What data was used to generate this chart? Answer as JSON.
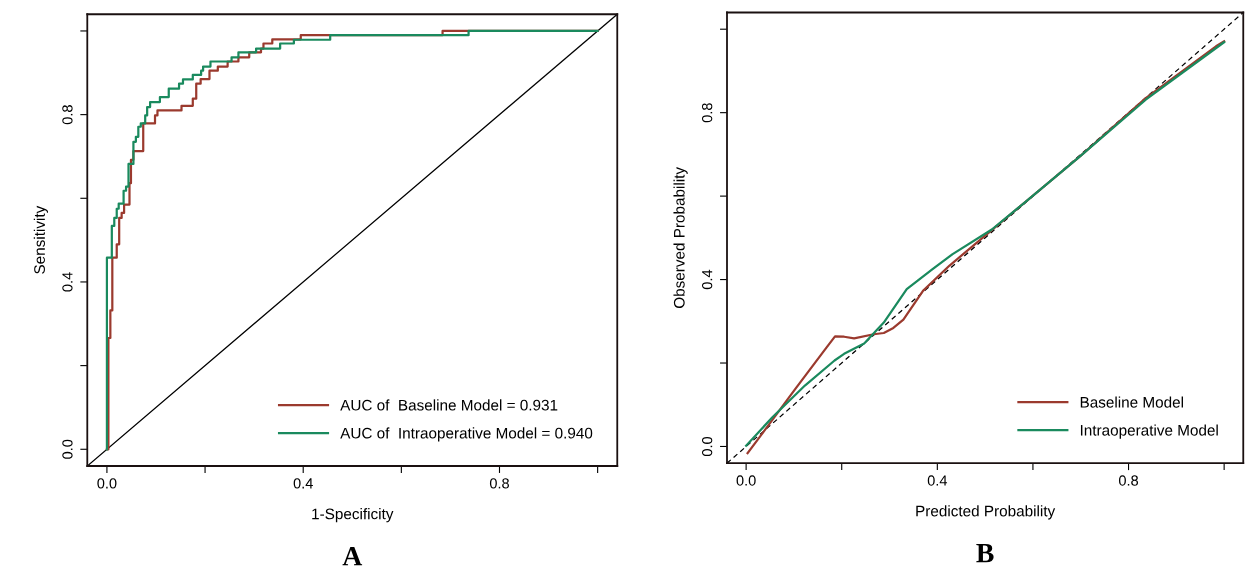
{
  "chart_data": [
    {
      "type": "step",
      "xlabel": "1-Specificity",
      "ylabel": "Sensitivity",
      "annotations": [
        "A"
      ],
      "xlim": [
        -0.04,
        1.04
      ],
      "ylim": [
        -0.04,
        1.04
      ],
      "xticks": [
        {
          "value": 0,
          "label": "0.0"
        },
        {
          "value": 0.2,
          "label": null
        },
        {
          "value": 0.4,
          "label": "0.4"
        },
        {
          "value": 0.6,
          "label": null
        },
        {
          "value": 0.8,
          "label": "0.8"
        },
        {
          "value": 1.0,
          "label": null
        }
      ],
      "yticks": [
        {
          "value": 0,
          "label": "0.0"
        },
        {
          "value": 0.2,
          "label": null
        },
        {
          "value": 0.4,
          "label": "0.4"
        },
        {
          "value": 0.6,
          "label": null
        },
        {
          "value": 0.8,
          "label": "0.8"
        },
        {
          "value": 1.0,
          "label": null
        }
      ],
      "legend": "bottom right",
      "grid": false,
      "series": [
        {
          "type": "line",
          "color": "#000000",
          "line_style": "solid",
          "x": [
            -0.04,
            1.04
          ],
          "values": [
            -0.04,
            1.04
          ]
        },
        {
          "name": "AUC of  Baseline Model = 0.931",
          "color": "#9b3a2e",
          "x": [
            0,
            0.003,
            0.007,
            0.011,
            0.02,
            0.025,
            0.03,
            0.035,
            0.046,
            0.049,
            0.054,
            0.074,
            0.098,
            0.103,
            0.152,
            0.175,
            0.182,
            0.191,
            0.209,
            0.226,
            0.246,
            0.268,
            0.29,
            0.314,
            0.319,
            0.337,
            0.395,
            0.684,
            1.0
          ],
          "values": [
            0,
            0.266,
            0.332,
            0.458,
            0.49,
            0.553,
            0.565,
            0.585,
            0.636,
            0.692,
            0.713,
            0.779,
            0.798,
            0.81,
            0.821,
            0.838,
            0.874,
            0.885,
            0.905,
            0.915,
            0.927,
            0.937,
            0.949,
            0.958,
            0.97,
            0.98,
            0.99,
            1.0,
            1.0
          ]
        },
        {
          "name": "AUC of  Intraoperative Model = 0.940",
          "color": "#1a8a5e",
          "x": [
            0,
            0,
            0.01,
            0.015,
            0.02,
            0.024,
            0.034,
            0.039,
            0.044,
            0.054,
            0.059,
            0.064,
            0.069,
            0.078,
            0.082,
            0.088,
            0.108,
            0.126,
            0.147,
            0.155,
            0.175,
            0.192,
            0.196,
            0.211,
            0.254,
            0.268,
            0.304,
            0.353,
            0.381,
            0.455,
            0.737,
            1.0
          ],
          "values": [
            0,
            0.458,
            0.534,
            0.553,
            0.575,
            0.587,
            0.618,
            0.628,
            0.682,
            0.735,
            0.747,
            0.771,
            0.779,
            0.798,
            0.818,
            0.83,
            0.842,
            0.862,
            0.874,
            0.884,
            0.895,
            0.905,
            0.915,
            0.927,
            0.937,
            0.949,
            0.958,
            0.97,
            0.979,
            0.99,
            1.0,
            1.0
          ]
        }
      ]
    },
    {
      "type": "line",
      "xlabel": "Predicted Probability",
      "ylabel": "Observed Probability",
      "annotations": [
        "B"
      ],
      "xlim": [
        -0.04,
        1.04
      ],
      "ylim": [
        -0.04,
        1.04
      ],
      "xticks": [
        {
          "value": 0,
          "label": "0.0"
        },
        {
          "value": 0.2,
          "label": null
        },
        {
          "value": 0.4,
          "label": "0.4"
        },
        {
          "value": 0.6,
          "label": null
        },
        {
          "value": 0.8,
          "label": "0.8"
        },
        {
          "value": 1.0,
          "label": null
        }
      ],
      "yticks": [
        {
          "value": 0,
          "label": "0.0"
        },
        {
          "value": 0.2,
          "label": null
        },
        {
          "value": 0.4,
          "label": "0.4"
        },
        {
          "value": 0.6,
          "label": null
        },
        {
          "value": 0.8,
          "label": "0.8"
        },
        {
          "value": 1.0,
          "label": null
        }
      ],
      "legend": "bottom right",
      "grid": false,
      "series": [
        {
          "color": "#000000",
          "line_style": "dashed",
          "x": [
            -0.04,
            1.04
          ],
          "values": [
            -0.04,
            1.04
          ]
        },
        {
          "name": "Baseline Model",
          "color": "#9b3a2e",
          "x": [
            0.003,
            0.041,
            0.103,
            0.168,
            0.186,
            0.205,
            0.226,
            0.267,
            0.288,
            0.308,
            0.329,
            0.37,
            0.425,
            0.507,
            0.582,
            0.699,
            0.836,
            0.983,
            1.0
          ],
          "values": [
            -0.016,
            0.042,
            0.138,
            0.237,
            0.264,
            0.263,
            0.259,
            0.269,
            0.272,
            0.284,
            0.304,
            0.373,
            0.433,
            0.512,
            0.584,
            0.696,
            0.835,
            0.959,
            0.971
          ]
        },
        {
          "name": "Intraoperative Model",
          "color": "#1a8a5e",
          "x": [
            0,
            0.055,
            0.123,
            0.185,
            0.205,
            0.247,
            0.288,
            0.336,
            0.39,
            0.432,
            0.514,
            0.582,
            0.699,
            0.836,
            1.0
          ],
          "values": [
            0.002,
            0.07,
            0.146,
            0.206,
            0.222,
            0.247,
            0.297,
            0.377,
            0.425,
            0.461,
            0.52,
            0.584,
            0.696,
            0.831,
            0.969
          ]
        }
      ]
    }
  ]
}
